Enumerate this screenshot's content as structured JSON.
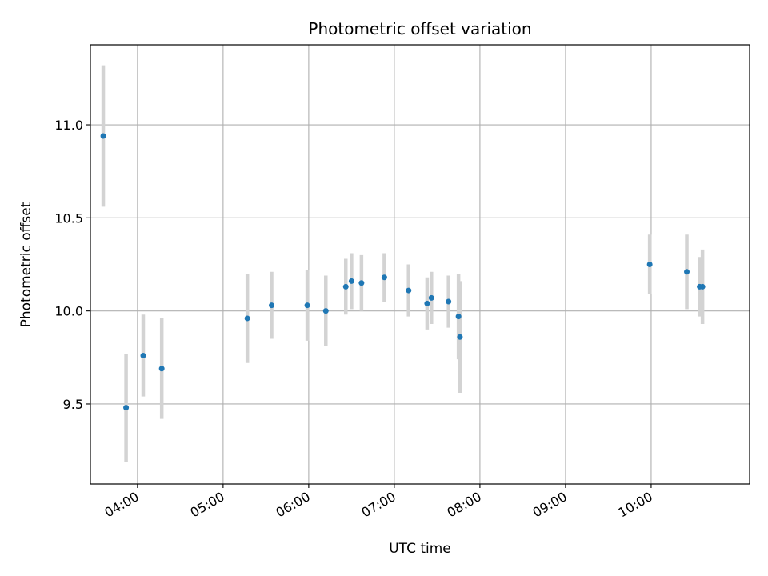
{
  "chart_data": {
    "type": "scatter",
    "title": "Photometric offset variation",
    "xlabel": "UTC time",
    "ylabel": "Photometric offset",
    "x_ticks": [
      "04:00",
      "05:00",
      "06:00",
      "07:00",
      "08:00",
      "09:00",
      "10:00"
    ],
    "y_ticks": [
      "9.5",
      "10.0",
      "10.5",
      "11.0"
    ],
    "xlim": [
      "03:27",
      "11:09"
    ],
    "ylim": [
      9.07,
      11.43
    ],
    "grid": true,
    "marker_color": "#1f77b4",
    "errorbar_color": "#d3d3d3",
    "points": [
      {
        "x": "03:36",
        "y": 10.94,
        "err": 0.38
      },
      {
        "x": "03:52",
        "y": 9.48,
        "err": 0.29
      },
      {
        "x": "04:04",
        "y": 9.76,
        "err": 0.22
      },
      {
        "x": "04:17",
        "y": 9.69,
        "err": 0.27
      },
      {
        "x": "05:17",
        "y": 9.96,
        "err": 0.24
      },
      {
        "x": "05:34",
        "y": 10.03,
        "err": 0.18
      },
      {
        "x": "05:59",
        "y": 10.03,
        "err": 0.19
      },
      {
        "x": "06:12",
        "y": 10.0,
        "err": 0.19
      },
      {
        "x": "06:26",
        "y": 10.13,
        "err": 0.15
      },
      {
        "x": "06:30",
        "y": 10.16,
        "err": 0.15
      },
      {
        "x": "06:37",
        "y": 10.15,
        "err": 0.15
      },
      {
        "x": "06:53",
        "y": 10.18,
        "err": 0.13
      },
      {
        "x": "07:10",
        "y": 10.11,
        "err": 0.14
      },
      {
        "x": "07:23",
        "y": 10.04,
        "err": 0.14
      },
      {
        "x": "07:26",
        "y": 10.07,
        "err": 0.14
      },
      {
        "x": "07:38",
        "y": 10.05,
        "err": 0.14
      },
      {
        "x": "07:45",
        "y": 9.97,
        "err": 0.23
      },
      {
        "x": "07:46",
        "y": 9.86,
        "err": 0.3
      },
      {
        "x": "09:59",
        "y": 10.25,
        "err": 0.16
      },
      {
        "x": "10:25",
        "y": 10.21,
        "err": 0.2
      },
      {
        "x": "10:34",
        "y": 10.13,
        "err": 0.16
      },
      {
        "x": "10:36",
        "y": 10.13,
        "err": 0.2
      }
    ]
  }
}
